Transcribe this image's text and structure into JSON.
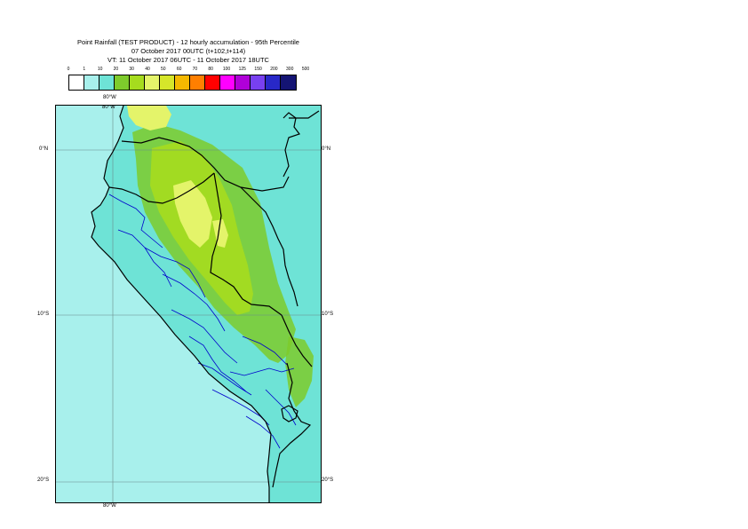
{
  "header": {
    "title_line1": "Point Rainfall (TEST PRODUCT) - 12 hourly accumulation - 95th Percentile",
    "title_line2": "07 October 2017 00UTC (t+102,t+114)",
    "title_line3": "VT: 11 October 2017 06UTC - 11 October 2017 18UTC"
  },
  "legend": {
    "thresholds": [
      "0",
      "1",
      "10",
      "20",
      "30",
      "40",
      "50",
      "60",
      "70",
      "80",
      "100",
      "125",
      "150",
      "200",
      "300",
      "500"
    ],
    "colors": [
      "#ffffff",
      "#a8f0ec",
      "#6ee3d6",
      "#7ecb2c",
      "#a6dc1e",
      "#e4f46a",
      "#d6e62a",
      "#f4b800",
      "#ff7f00",
      "#ff0000",
      "#ff00ff",
      "#b000d8",
      "#7840f0",
      "#2828c8",
      "#141474"
    ]
  },
  "map": {
    "lat_labels": [
      "0°N",
      "10°S",
      "20°S"
    ],
    "lon_labels": [
      "80°W"
    ],
    "colors": {
      "ocean": "#a8f0ec",
      "land_background": "#6ee3d6",
      "rain_10_20": "#7ecb2c",
      "rain_20_30": "#a6dc1e",
      "rain_30_40": "#e4f46a",
      "rain_60": "#f4b800",
      "national_border": "#000000",
      "regional_border": "#0000cc",
      "graticule": "#6a8a8a"
    }
  }
}
